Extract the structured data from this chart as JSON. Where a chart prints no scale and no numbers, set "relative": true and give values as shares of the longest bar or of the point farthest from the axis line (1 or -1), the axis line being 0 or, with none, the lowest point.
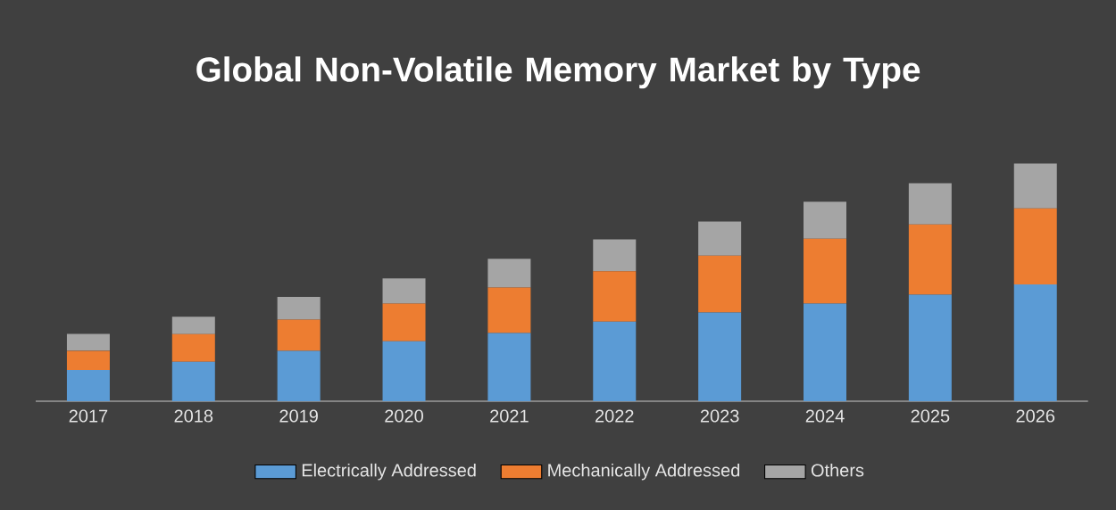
{
  "chart_data": {
    "type": "bar",
    "title": "Global Non-Volatile Memory Market by Type",
    "categories": [
      "2017",
      "2018",
      "2019",
      "2020",
      "2021",
      "2022",
      "2023",
      "2024",
      "2025",
      "2026"
    ],
    "series": [
      {
        "name": "Electrically Addressed",
        "color": "#5b9bd5",
        "values": [
          0.131,
          0.166,
          0.212,
          0.252,
          0.287,
          0.335,
          0.373,
          0.411,
          0.448,
          0.491
        ]
      },
      {
        "name": "Mechanically Addressed",
        "color": "#ed7d31",
        "values": [
          0.081,
          0.116,
          0.131,
          0.159,
          0.191,
          0.212,
          0.239,
          0.272,
          0.295,
          0.32
        ]
      },
      {
        "name": "Others",
        "color": "#a5a5a5",
        "values": [
          0.071,
          0.073,
          0.096,
          0.106,
          0.121,
          0.134,
          0.144,
          0.156,
          0.174,
          0.189
        ]
      }
    ],
    "stacked": true,
    "relative": true,
    "legend": "bottom"
  }
}
